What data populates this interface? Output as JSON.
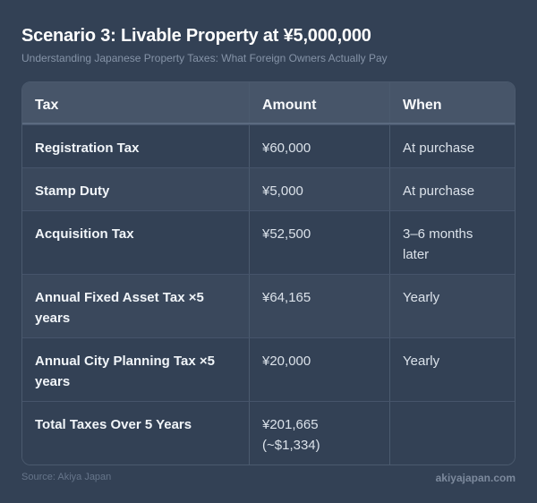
{
  "title": "Scenario 3: Livable Property at ¥5,000,000",
  "subtitle": "Understanding Japanese Property Taxes: What Foreign Owners Actually Pay",
  "table": {
    "headers": [
      "Tax",
      "Amount",
      "When"
    ],
    "rows": [
      {
        "tax": "Registration Tax",
        "amount": "¥60,000",
        "amount_note": "",
        "when": "At purchase"
      },
      {
        "tax": "Stamp Duty",
        "amount": "¥5,000",
        "amount_note": "",
        "when": "At purchase"
      },
      {
        "tax": "Acquisition Tax",
        "amount": "¥52,500",
        "amount_note": "",
        "when": "3–6 months later"
      },
      {
        "tax": "Annual Fixed Asset Tax ×5 years",
        "amount": "¥64,165",
        "amount_note": "",
        "when": "Yearly"
      },
      {
        "tax": "Annual City Planning Tax ×5 years",
        "amount": "¥20,000",
        "amount_note": "",
        "when": "Yearly"
      },
      {
        "tax": "Total Taxes Over 5 Years",
        "amount": "¥201,665",
        "amount_note": "(~$1,334)",
        "when": ""
      }
    ]
  },
  "footer": {
    "source": "Source: Akiya Japan",
    "site": "akiyajapan.com"
  },
  "colors": {
    "background": "#334155",
    "header": "#475569"
  }
}
